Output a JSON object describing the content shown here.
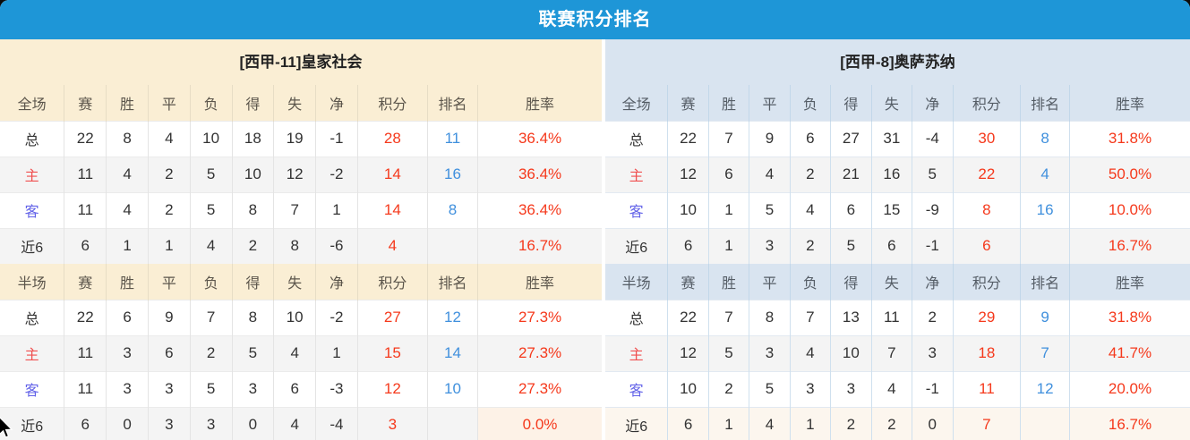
{
  "banner": {
    "title": "联赛积分排名"
  },
  "colors": {
    "banner_blue": "#1e96d7",
    "left_theme_bg": "#faeed4",
    "right_theme_bg": "#d9e4f0",
    "points_red": "#f5391c",
    "rate_red": "#f5391c",
    "rank_blue": "#4090dd",
    "home_label_red": "#f05050",
    "away_label_blue": "#6363e8",
    "alt_row_gray": "#f4f4f4",
    "lowlight_peach": "#fdf2e7"
  },
  "column_keys": [
    "label",
    "games",
    "win",
    "draw",
    "loss",
    "for",
    "against",
    "diff",
    "points",
    "rank",
    "rate"
  ],
  "tables": [
    {
      "title": "[西甲-11]皇家社会",
      "sections": [
        {
          "header": [
            "全场",
            "赛",
            "胜",
            "平",
            "负",
            "得",
            "失",
            "净",
            "积分",
            "排名",
            "胜率"
          ],
          "rows": [
            {
              "type": "total",
              "highlight": "none",
              "cells": [
                "总",
                "22",
                "8",
                "4",
                "10",
                "18",
                "19",
                "-1",
                "28",
                "11",
                "36.4%"
              ]
            },
            {
              "type": "home",
              "highlight": "none",
              "cells": [
                "主",
                "11",
                "4",
                "2",
                "5",
                "10",
                "12",
                "-2",
                "14",
                "16",
                "36.4%"
              ]
            },
            {
              "type": "away",
              "highlight": "none",
              "cells": [
                "客",
                "11",
                "4",
                "2",
                "5",
                "8",
                "7",
                "1",
                "14",
                "8",
                "36.4%"
              ]
            },
            {
              "type": "last6",
              "highlight": "none",
              "cells": [
                "近6",
                "6",
                "1",
                "1",
                "4",
                "2",
                "8",
                "-6",
                "4",
                "",
                "16.7%"
              ]
            }
          ]
        },
        {
          "header": [
            "半场",
            "赛",
            "胜",
            "平",
            "负",
            "得",
            "失",
            "净",
            "积分",
            "排名",
            "胜率"
          ],
          "rows": [
            {
              "type": "total",
              "highlight": "none",
              "cells": [
                "总",
                "22",
                "6",
                "9",
                "7",
                "8",
                "10",
                "-2",
                "27",
                "12",
                "27.3%"
              ]
            },
            {
              "type": "home",
              "highlight": "none",
              "cells": [
                "主",
                "11",
                "3",
                "6",
                "2",
                "5",
                "4",
                "1",
                "15",
                "14",
                "27.3%"
              ]
            },
            {
              "type": "away",
              "highlight": "none",
              "cells": [
                "客",
                "11",
                "3",
                "3",
                "5",
                "3",
                "6",
                "-3",
                "12",
                "10",
                "27.3%"
              ]
            },
            {
              "type": "last6",
              "highlight": "rate-cell",
              "cells": [
                "近6",
                "6",
                "0",
                "3",
                "3",
                "0",
                "4",
                "-4",
                "3",
                "",
                "0.0%"
              ]
            }
          ]
        }
      ]
    },
    {
      "title": "[西甲-8]奥萨苏纳",
      "sections": [
        {
          "header": [
            "全场",
            "赛",
            "胜",
            "平",
            "负",
            "得",
            "失",
            "净",
            "积分",
            "排名",
            "胜率"
          ],
          "rows": [
            {
              "type": "total",
              "highlight": "none",
              "cells": [
                "总",
                "22",
                "7",
                "9",
                "6",
                "27",
                "31",
                "-4",
                "30",
                "8",
                "31.8%"
              ]
            },
            {
              "type": "home",
              "highlight": "none",
              "cells": [
                "主",
                "12",
                "6",
                "4",
                "2",
                "21",
                "16",
                "5",
                "22",
                "4",
                "50.0%"
              ]
            },
            {
              "type": "away",
              "highlight": "none",
              "cells": [
                "客",
                "10",
                "1",
                "5",
                "4",
                "6",
                "15",
                "-9",
                "8",
                "16",
                "10.0%"
              ]
            },
            {
              "type": "last6",
              "highlight": "none",
              "cells": [
                "近6",
                "6",
                "1",
                "3",
                "2",
                "5",
                "6",
                "-1",
                "6",
                "",
                "16.7%"
              ]
            }
          ]
        },
        {
          "header": [
            "半场",
            "赛",
            "胜",
            "平",
            "负",
            "得",
            "失",
            "净",
            "积分",
            "排名",
            "胜率"
          ],
          "rows": [
            {
              "type": "total",
              "highlight": "none",
              "cells": [
                "总",
                "22",
                "7",
                "8",
                "7",
                "13",
                "11",
                "2",
                "29",
                "9",
                "31.8%"
              ]
            },
            {
              "type": "home",
              "highlight": "none",
              "cells": [
                "主",
                "12",
                "5",
                "3",
                "4",
                "10",
                "7",
                "3",
                "18",
                "7",
                "41.7%"
              ]
            },
            {
              "type": "away",
              "highlight": "none",
              "cells": [
                "客",
                "10",
                "2",
                "5",
                "3",
                "3",
                "4",
                "-1",
                "11",
                "12",
                "20.0%"
              ]
            },
            {
              "type": "last6",
              "highlight": "row",
              "cells": [
                "近6",
                "6",
                "1",
                "4",
                "1",
                "2",
                "2",
                "0",
                "7",
                "",
                "16.7%"
              ]
            }
          ]
        }
      ]
    }
  ]
}
